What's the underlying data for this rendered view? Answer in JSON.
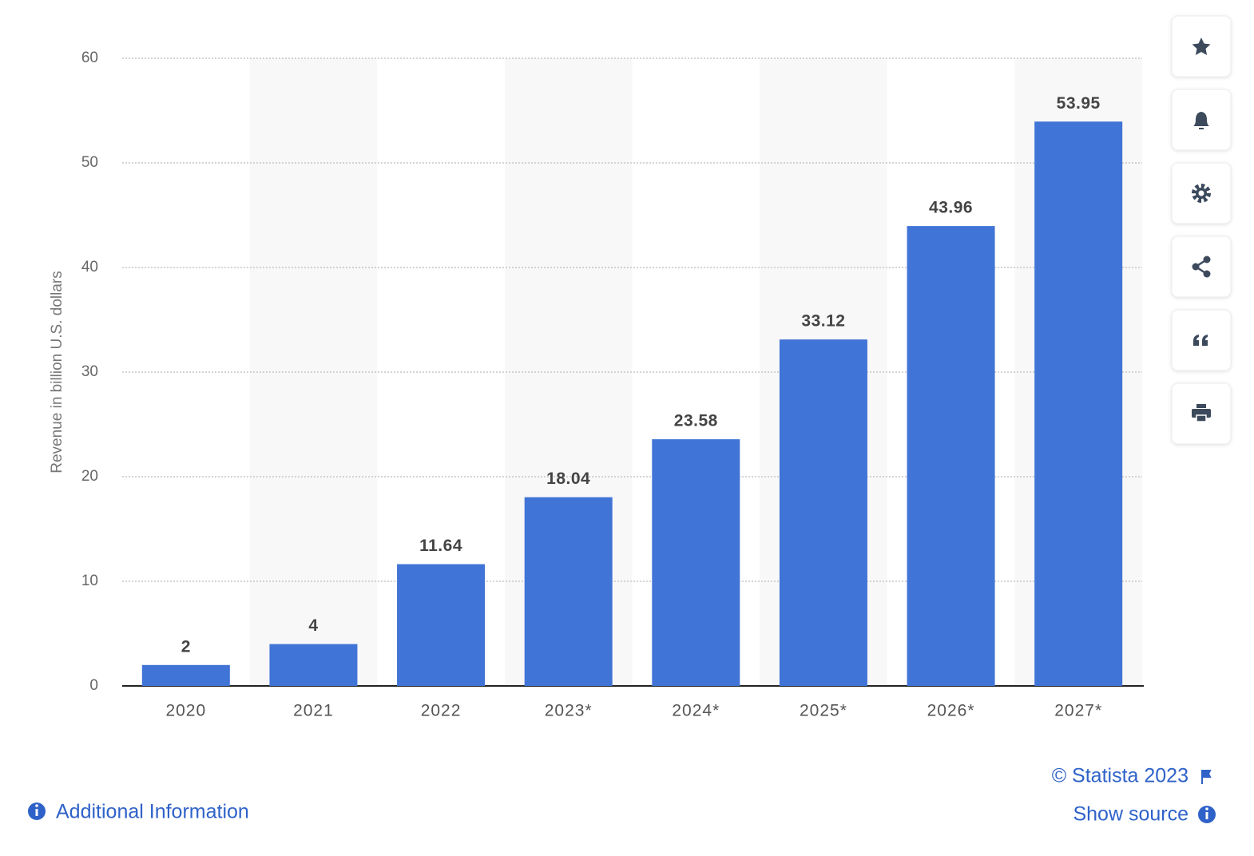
{
  "chart_data": {
    "type": "bar",
    "y_axis_label": "Revenue in billion U.S. dollars",
    "categories": [
      "2020",
      "2021",
      "2022",
      "2023*",
      "2024*",
      "2025*",
      "2026*",
      "2027*"
    ],
    "values": [
      2,
      4,
      11.64,
      18.04,
      23.58,
      33.12,
      43.96,
      53.95
    ],
    "color": "#4074d6",
    "ylim": [
      0,
      60
    ],
    "yticks": [
      0,
      10,
      20,
      30,
      40,
      50,
      60
    ],
    "grid": true
  },
  "footer": {
    "copyright": "© Statista 2023",
    "additional_info": "Additional Information",
    "show_source": "Show source"
  }
}
